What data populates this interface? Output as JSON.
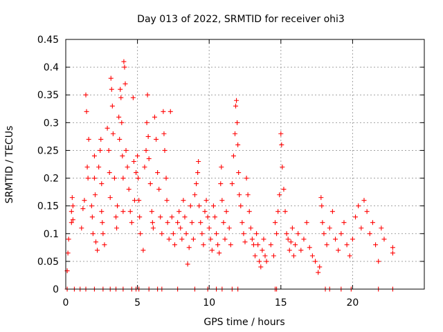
{
  "chart_data": {
    "type": "scatter",
    "title": "Day 013 of 2022, SRMTID for receiver ohi3",
    "xlabel": "GPS time / hours",
    "ylabel": "SRMTID / TECUs",
    "xlim": [
      0,
      25
    ],
    "ylim": [
      0,
      0.45
    ],
    "grid": true,
    "marker": "+",
    "color": "#ff0000",
    "x_ticks": [
      0,
      5,
      10,
      15,
      20
    ],
    "x_tick_labels": [
      "0",
      "5",
      "10",
      "15",
      "20"
    ],
    "y_ticks": [
      0,
      0.05,
      0.1,
      0.15,
      0.2,
      0.25,
      0.3,
      0.35,
      0.4,
      0.45
    ],
    "y_tick_labels": [
      "0",
      "0.05",
      "0.1",
      "0.15",
      "0.2",
      "0.25",
      "0.3",
      "0.35",
      "0.4",
      "0.45"
    ],
    "series": [
      {
        "name": "SRMTID",
        "points": [
          [
            0.1,
            0.033
          ],
          [
            0.15,
            0.065
          ],
          [
            0.2,
            0.09
          ],
          [
            0.4,
            0.12
          ],
          [
            0.4,
            0.14
          ],
          [
            0.45,
            0.165
          ],
          [
            0.5,
            0.15
          ],
          [
            0.5,
            0.125
          ],
          [
            1.1,
            0.11
          ],
          [
            1.2,
            0.145
          ],
          [
            1.3,
            0.16
          ],
          [
            1.4,
            0.35
          ],
          [
            1.45,
            0.32
          ],
          [
            1.5,
            0.22
          ],
          [
            1.55,
            0.2
          ],
          [
            1.6,
            0.27
          ],
          [
            1.8,
            0.15
          ],
          [
            1.85,
            0.13
          ],
          [
            1.9,
            0.1
          ],
          [
            2.0,
            0.24
          ],
          [
            2.0,
            0.2
          ],
          [
            2.05,
            0.17
          ],
          [
            2.1,
            0.085
          ],
          [
            2.2,
            0.07
          ],
          [
            2.3,
            0.22
          ],
          [
            2.4,
            0.25
          ],
          [
            2.45,
            0.27
          ],
          [
            2.5,
            0.19
          ],
          [
            2.5,
            0.14
          ],
          [
            2.55,
            0.12
          ],
          [
            2.6,
            0.1
          ],
          [
            2.7,
            0.08
          ],
          [
            2.9,
            0.29
          ],
          [
            3.0,
            0.25
          ],
          [
            3.05,
            0.21
          ],
          [
            3.1,
            0.165
          ],
          [
            3.15,
            0.38
          ],
          [
            3.2,
            0.36
          ],
          [
            3.25,
            0.33
          ],
          [
            3.3,
            0.28
          ],
          [
            3.4,
            0.2
          ],
          [
            3.5,
            0.13
          ],
          [
            3.55,
            0.11
          ],
          [
            3.6,
            0.15
          ],
          [
            3.7,
            0.31
          ],
          [
            3.75,
            0.27
          ],
          [
            3.8,
            0.36
          ],
          [
            3.85,
            0.345
          ],
          [
            3.9,
            0.3
          ],
          [
            3.95,
            0.24
          ],
          [
            4.0,
            0.2
          ],
          [
            4.0,
            0.14
          ],
          [
            4.05,
            0.41
          ],
          [
            4.1,
            0.4
          ],
          [
            4.15,
            0.37
          ],
          [
            4.2,
            0.25
          ],
          [
            4.3,
            0.22
          ],
          [
            4.4,
            0.18
          ],
          [
            4.5,
            0.14
          ],
          [
            4.6,
            0.12
          ],
          [
            4.7,
            0.345
          ],
          [
            4.75,
            0.23
          ],
          [
            4.8,
            0.16
          ],
          [
            4.9,
            0.21
          ],
          [
            5.0,
            0.24
          ],
          [
            5.05,
            0.2
          ],
          [
            5.1,
            0.16
          ],
          [
            5.15,
            0.13
          ],
          [
            5.2,
            0.1
          ],
          [
            5.4,
            0.07
          ],
          [
            5.5,
            0.22
          ],
          [
            5.6,
            0.25
          ],
          [
            5.65,
            0.3
          ],
          [
            5.7,
            0.35
          ],
          [
            5.75,
            0.275
          ],
          [
            5.8,
            0.235
          ],
          [
            5.9,
            0.19
          ],
          [
            6.0,
            0.14
          ],
          [
            6.05,
            0.12
          ],
          [
            6.1,
            0.11
          ],
          [
            6.2,
            0.31
          ],
          [
            6.3,
            0.27
          ],
          [
            6.4,
            0.21
          ],
          [
            6.5,
            0.18
          ],
          [
            6.6,
            0.13
          ],
          [
            6.7,
            0.1
          ],
          [
            6.8,
            0.32
          ],
          [
            6.85,
            0.28
          ],
          [
            6.9,
            0.25
          ],
          [
            7.0,
            0.2
          ],
          [
            7.05,
            0.16
          ],
          [
            7.1,
            0.12
          ],
          [
            7.2,
            0.09
          ],
          [
            7.3,
            0.32
          ],
          [
            7.4,
            0.13
          ],
          [
            7.5,
            0.1
          ],
          [
            7.6,
            0.08
          ],
          [
            7.8,
            0.12
          ],
          [
            7.9,
            0.14
          ],
          [
            8.0,
            0.11
          ],
          [
            8.1,
            0.09
          ],
          [
            8.2,
            0.16
          ],
          [
            8.3,
            0.13
          ],
          [
            8.4,
            0.1
          ],
          [
            8.5,
            0.045
          ],
          [
            8.6,
            0.075
          ],
          [
            8.7,
            0.15
          ],
          [
            8.8,
            0.12
          ],
          [
            8.9,
            0.09
          ],
          [
            9.0,
            0.17
          ],
          [
            9.1,
            0.19
          ],
          [
            9.2,
            0.21
          ],
          [
            9.25,
            0.23
          ],
          [
            9.3,
            0.15
          ],
          [
            9.4,
            0.12
          ],
          [
            9.5,
            0.1
          ],
          [
            9.6,
            0.08
          ],
          [
            9.7,
            0.14
          ],
          [
            9.8,
            0.16
          ],
          [
            9.9,
            0.13
          ],
          [
            10.0,
            0.11
          ],
          [
            10.1,
            0.09
          ],
          [
            10.2,
            0.07
          ],
          [
            10.3,
            0.15
          ],
          [
            10.4,
            0.13
          ],
          [
            10.5,
            0.1
          ],
          [
            10.6,
            0.08
          ],
          [
            10.7,
            0.065
          ],
          [
            10.8,
            0.19
          ],
          [
            10.85,
            0.22
          ],
          [
            10.9,
            0.16
          ],
          [
            11.0,
            0.12
          ],
          [
            11.1,
            0.09
          ],
          [
            11.2,
            0.14
          ],
          [
            11.4,
            0.11
          ],
          [
            11.5,
            0.08
          ],
          [
            11.6,
            0.19
          ],
          [
            11.7,
            0.24
          ],
          [
            11.8,
            0.28
          ],
          [
            11.85,
            0.33
          ],
          [
            11.9,
            0.34
          ],
          [
            11.95,
            0.3
          ],
          [
            12.0,
            0.26
          ],
          [
            12.05,
            0.21
          ],
          [
            12.1,
            0.17
          ],
          [
            12.2,
            0.15
          ],
          [
            12.3,
            0.12
          ],
          [
            12.4,
            0.1
          ],
          [
            12.5,
            0.085
          ],
          [
            12.6,
            0.2
          ],
          [
            12.7,
            0.17
          ],
          [
            12.8,
            0.14
          ],
          [
            12.9,
            0.11
          ],
          [
            13.0,
            0.09
          ],
          [
            13.1,
            0.08
          ],
          [
            13.2,
            0.06
          ],
          [
            13.3,
            0.1
          ],
          [
            13.4,
            0.08
          ],
          [
            13.5,
            0.05
          ],
          [
            13.6,
            0.04
          ],
          [
            13.7,
            0.07
          ],
          [
            13.8,
            0.09
          ],
          [
            13.9,
            0.06
          ],
          [
            14.0,
            0.05
          ],
          [
            14.3,
            0.08
          ],
          [
            14.5,
            0.06
          ],
          [
            14.6,
            0.12
          ],
          [
            14.7,
            0.1
          ],
          [
            14.8,
            0.14
          ],
          [
            14.9,
            0.17
          ],
          [
            15.0,
            0.28
          ],
          [
            15.05,
            0.26
          ],
          [
            15.1,
            0.22
          ],
          [
            15.2,
            0.18
          ],
          [
            15.3,
            0.14
          ],
          [
            15.4,
            0.1
          ],
          [
            15.5,
            0.09
          ],
          [
            15.6,
            0.07
          ],
          [
            15.7,
            0.085
          ],
          [
            15.8,
            0.11
          ],
          [
            15.9,
            0.06
          ],
          [
            16.0,
            0.08
          ],
          [
            16.2,
            0.1
          ],
          [
            16.4,
            0.07
          ],
          [
            16.6,
            0.09
          ],
          [
            16.8,
            0.12
          ],
          [
            17.0,
            0.075
          ],
          [
            17.2,
            0.06
          ],
          [
            17.4,
            0.05
          ],
          [
            17.6,
            0.03
          ],
          [
            17.7,
            0.04
          ],
          [
            17.8,
            0.165
          ],
          [
            17.85,
            0.15
          ],
          [
            17.9,
            0.12
          ],
          [
            18.0,
            0.1
          ],
          [
            18.2,
            0.08
          ],
          [
            18.4,
            0.11
          ],
          [
            18.6,
            0.14
          ],
          [
            18.8,
            0.09
          ],
          [
            19.0,
            0.07
          ],
          [
            19.2,
            0.1
          ],
          [
            19.4,
            0.12
          ],
          [
            19.6,
            0.08
          ],
          [
            19.8,
            0.06
          ],
          [
            20.0,
            0.09
          ],
          [
            20.2,
            0.13
          ],
          [
            20.4,
            0.15
          ],
          [
            20.6,
            0.11
          ],
          [
            20.8,
            0.16
          ],
          [
            21.0,
            0.14
          ],
          [
            21.2,
            0.1
          ],
          [
            21.4,
            0.12
          ],
          [
            21.6,
            0.08
          ],
          [
            21.8,
            0.05
          ],
          [
            22.0,
            0.11
          ],
          [
            22.2,
            0.09
          ],
          [
            22.8,
            0.075
          ],
          [
            22.8,
            0.065
          ]
        ],
        "zero_points_x": [
          0.1,
          0.6,
          1.0,
          1.4,
          2.0,
          2.6,
          3.1,
          3.5,
          4.0,
          4.6,
          4.9,
          5.1,
          5.8,
          6.4,
          6.7,
          7.8,
          9.0,
          9.9,
          10.5,
          10.9,
          11.6,
          12.0,
          14.6,
          14.7,
          18.1,
          18.4,
          19.2,
          19.9,
          21.8,
          22.8
        ]
      }
    ]
  }
}
